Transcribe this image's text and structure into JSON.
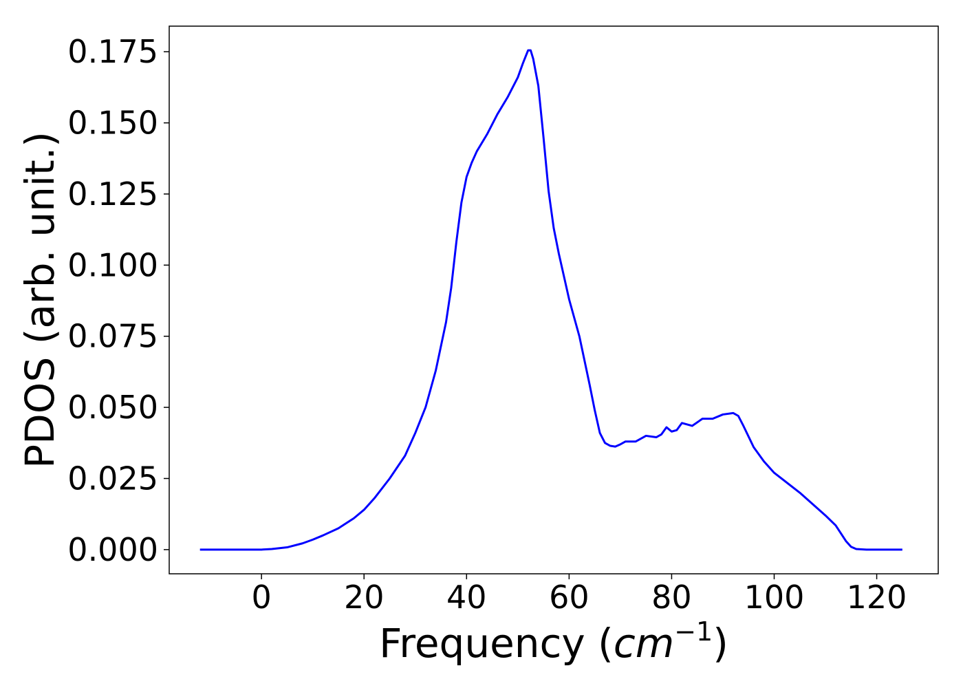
{
  "chart_data": {
    "type": "line",
    "xlabel": [
      "Frequency (",
      "cm",
      "−1",
      ")"
    ],
    "ylabel": "PDOS (arb. unit.)",
    "xlim": [
      -18,
      132
    ],
    "ylim": [
      -0.0085,
      0.184
    ],
    "xticks": [
      0,
      20,
      40,
      60,
      80,
      100,
      120
    ],
    "yticks": [
      {
        "value": 0,
        "label": "0.000"
      },
      {
        "value": 0.025,
        "label": "0.025"
      },
      {
        "value": 0.05,
        "label": "0.050"
      },
      {
        "value": 0.075,
        "label": "0.075"
      },
      {
        "value": 0.1,
        "label": "0.100"
      },
      {
        "value": 0.125,
        "label": "0.125"
      },
      {
        "value": 0.15,
        "label": "0.150"
      },
      {
        "value": 0.175,
        "label": "0.175"
      }
    ],
    "grid": false,
    "series": [
      {
        "color": "#0000ff",
        "x": [
          -12,
          0,
          2,
          5,
          8,
          10,
          12,
          15,
          18,
          20,
          22,
          25,
          28,
          30,
          32,
          34,
          36,
          37,
          38,
          39,
          40,
          41,
          42,
          44,
          46,
          48,
          50,
          51,
          52,
          52.5,
          53,
          54,
          55,
          56,
          57,
          58,
          60,
          62,
          64,
          65,
          66,
          67,
          68,
          69,
          70,
          71,
          73,
          75,
          77,
          78,
          79,
          80,
          81,
          82,
          84,
          86,
          88,
          90,
          92,
          93,
          94,
          96,
          98,
          100,
          105,
          110,
          112,
          114,
          115,
          116,
          118,
          125
        ],
        "values": [
          0,
          0,
          0.0002,
          0.0008,
          0.0022,
          0.0035,
          0.005,
          0.0075,
          0.011,
          0.014,
          0.018,
          0.025,
          0.033,
          0.041,
          0.05,
          0.063,
          0.08,
          0.092,
          0.108,
          0.122,
          0.131,
          0.136,
          0.14,
          0.146,
          0.153,
          0.159,
          0.166,
          0.171,
          0.1755,
          0.1755,
          0.1725,
          0.163,
          0.145,
          0.126,
          0.113,
          0.104,
          0.088,
          0.075,
          0.058,
          0.049,
          0.041,
          0.0375,
          0.0365,
          0.0362,
          0.037,
          0.038,
          0.038,
          0.04,
          0.0395,
          0.0405,
          0.043,
          0.0415,
          0.042,
          0.0445,
          0.0435,
          0.046,
          0.046,
          0.0475,
          0.048,
          0.047,
          0.0435,
          0.036,
          0.031,
          0.027,
          0.02,
          0.012,
          0.0085,
          0.003,
          0.001,
          0.0002,
          0,
          0
        ]
      }
    ]
  }
}
